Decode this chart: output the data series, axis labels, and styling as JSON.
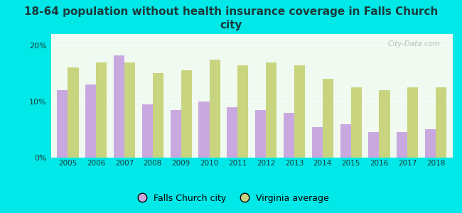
{
  "title": "18-64 population without health insurance coverage in Falls Church\ncity",
  "years": [
    2005,
    2006,
    2007,
    2008,
    2009,
    2010,
    2011,
    2012,
    2013,
    2014,
    2015,
    2016,
    2017,
    2018
  ],
  "falls_church": [
    12.0,
    13.0,
    18.2,
    9.5,
    8.5,
    10.0,
    9.0,
    8.5,
    8.0,
    5.5,
    6.0,
    4.5,
    4.5,
    5.0
  ],
  "virginia_avg": [
    16.0,
    17.0,
    17.0,
    15.0,
    15.5,
    17.5,
    16.5,
    17.0,
    16.5,
    14.0,
    12.5,
    12.0,
    12.5,
    12.5
  ],
  "falls_church_color": "#c9a8e0",
  "virginia_color": "#c8d47e",
  "background_outer": "#00e8e8",
  "background_inner": "#f0faf0",
  "ylim": [
    0,
    22
  ],
  "yticks": [
    0,
    10,
    20
  ],
  "ytick_labels": [
    "0%",
    "10%",
    "20%"
  ],
  "bar_width": 0.38,
  "legend_falls_church": "Falls Church city",
  "legend_virginia": "Virginia average",
  "watermark": "City-Data.com",
  "title_color": "#1a3a3a",
  "tick_color": "#1a3a3a"
}
